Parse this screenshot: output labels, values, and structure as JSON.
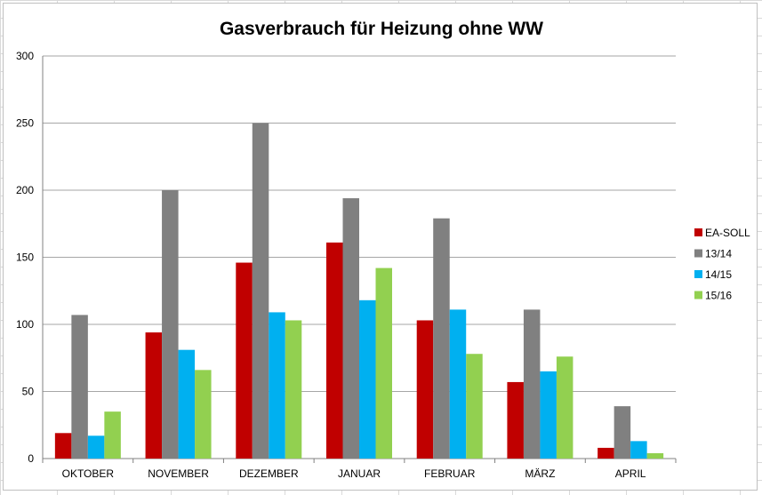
{
  "chart_data": {
    "type": "bar",
    "title": "Gasverbrauch für Heizung ohne WW",
    "xlabel": "",
    "ylabel": "",
    "categories": [
      "OKTOBER",
      "NOVEMBER",
      "DEZEMBER",
      "JANUAR",
      "FEBRUAR",
      "MÄRZ",
      "APRIL"
    ],
    "ylim": [
      0,
      300
    ],
    "yticks": [
      0,
      50,
      100,
      150,
      200,
      250,
      300
    ],
    "grid": true,
    "legend_position": "right",
    "series": [
      {
        "name": "EA-SOLL",
        "color": "#c00000",
        "values": [
          19,
          94,
          146,
          161,
          103,
          57,
          8
        ]
      },
      {
        "name": "13/14",
        "color": "#808080",
        "values": [
          107,
          200,
          250,
          194,
          179,
          111,
          39
        ]
      },
      {
        "name": "14/15",
        "color": "#00b0f0",
        "values": [
          17,
          81,
          109,
          118,
          111,
          65,
          13
        ]
      },
      {
        "name": "15/16",
        "color": "#92d050",
        "values": [
          35,
          66,
          103,
          142,
          78,
          76,
          4
        ]
      }
    ]
  }
}
